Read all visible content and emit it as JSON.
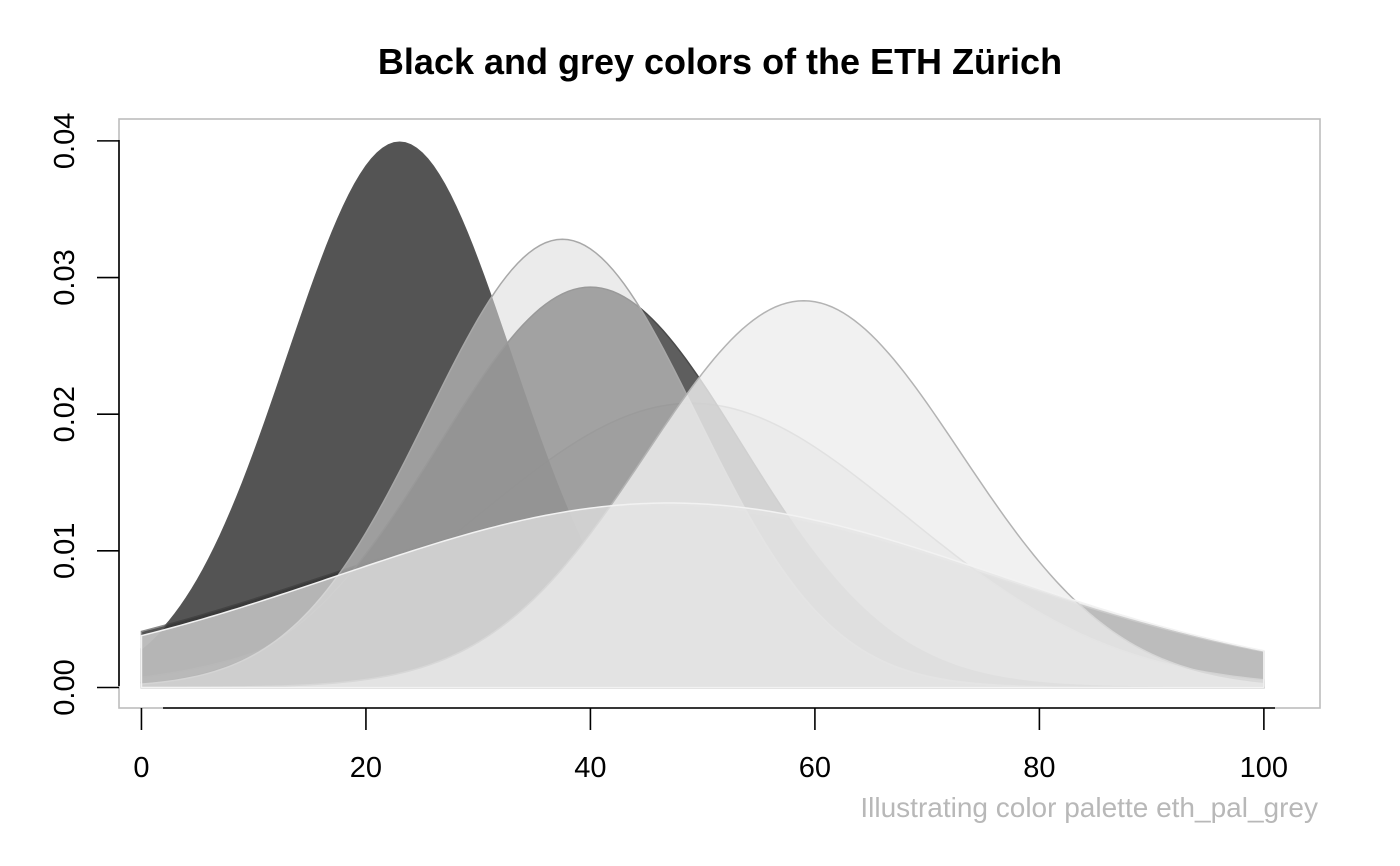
{
  "chart_data": {
    "type": "area",
    "title": "Black and grey colors of the ETH Zürich",
    "caption": "Illustrating color palette eth_pal_grey",
    "xlabel": "",
    "ylabel": "",
    "xlim": [
      -2,
      105
    ],
    "ylim": [
      -0.0015,
      0.0416
    ],
    "x_range": [
      0,
      100
    ],
    "x_ticks": [
      0,
      20,
      40,
      60,
      80,
      100
    ],
    "y_ticks": [
      0,
      0.01,
      0.02,
      0.03,
      0.04
    ],
    "y_tick_labels": [
      "0.00",
      "0.01",
      "0.02",
      "0.03",
      "0.04"
    ],
    "grid": false,
    "legend": "none",
    "series": [
      {
        "mean": 46,
        "sd": 30,
        "peak": 0.0133,
        "fill": "#2e2e2e",
        "fill_opacity": 0.82,
        "line": "#8a8a8a"
      },
      {
        "mean": 49,
        "sd": 19,
        "peak": 0.0208,
        "fill": "#d2d2d2",
        "fill_opacity": 0.8,
        "line": "#a6a6a6"
      },
      {
        "mean": 23,
        "sd": 10,
        "peak": 0.0399,
        "fill": "#363636",
        "fill_opacity": 0.85,
        "line": "#555555"
      },
      {
        "mean": 40,
        "sd": 13.5,
        "peak": 0.0293,
        "fill": "#3a3a3a",
        "fill_opacity": 0.82,
        "line": "#4a4a4a"
      },
      {
        "mean": 37.5,
        "sd": 12,
        "peak": 0.0328,
        "fill": "#dadada",
        "fill_opacity": 0.55,
        "line": "#a8a8a8"
      },
      {
        "mean": 59,
        "sd": 14,
        "peak": 0.0283,
        "fill": "#eeeeee",
        "fill_opacity": 0.82,
        "line": "#b3b3b3"
      },
      {
        "mean": 47,
        "sd": 29.5,
        "peak": 0.0135,
        "fill": "#e4e4e4",
        "fill_opacity": 0.72,
        "line": "#f2f2f2"
      }
    ]
  }
}
